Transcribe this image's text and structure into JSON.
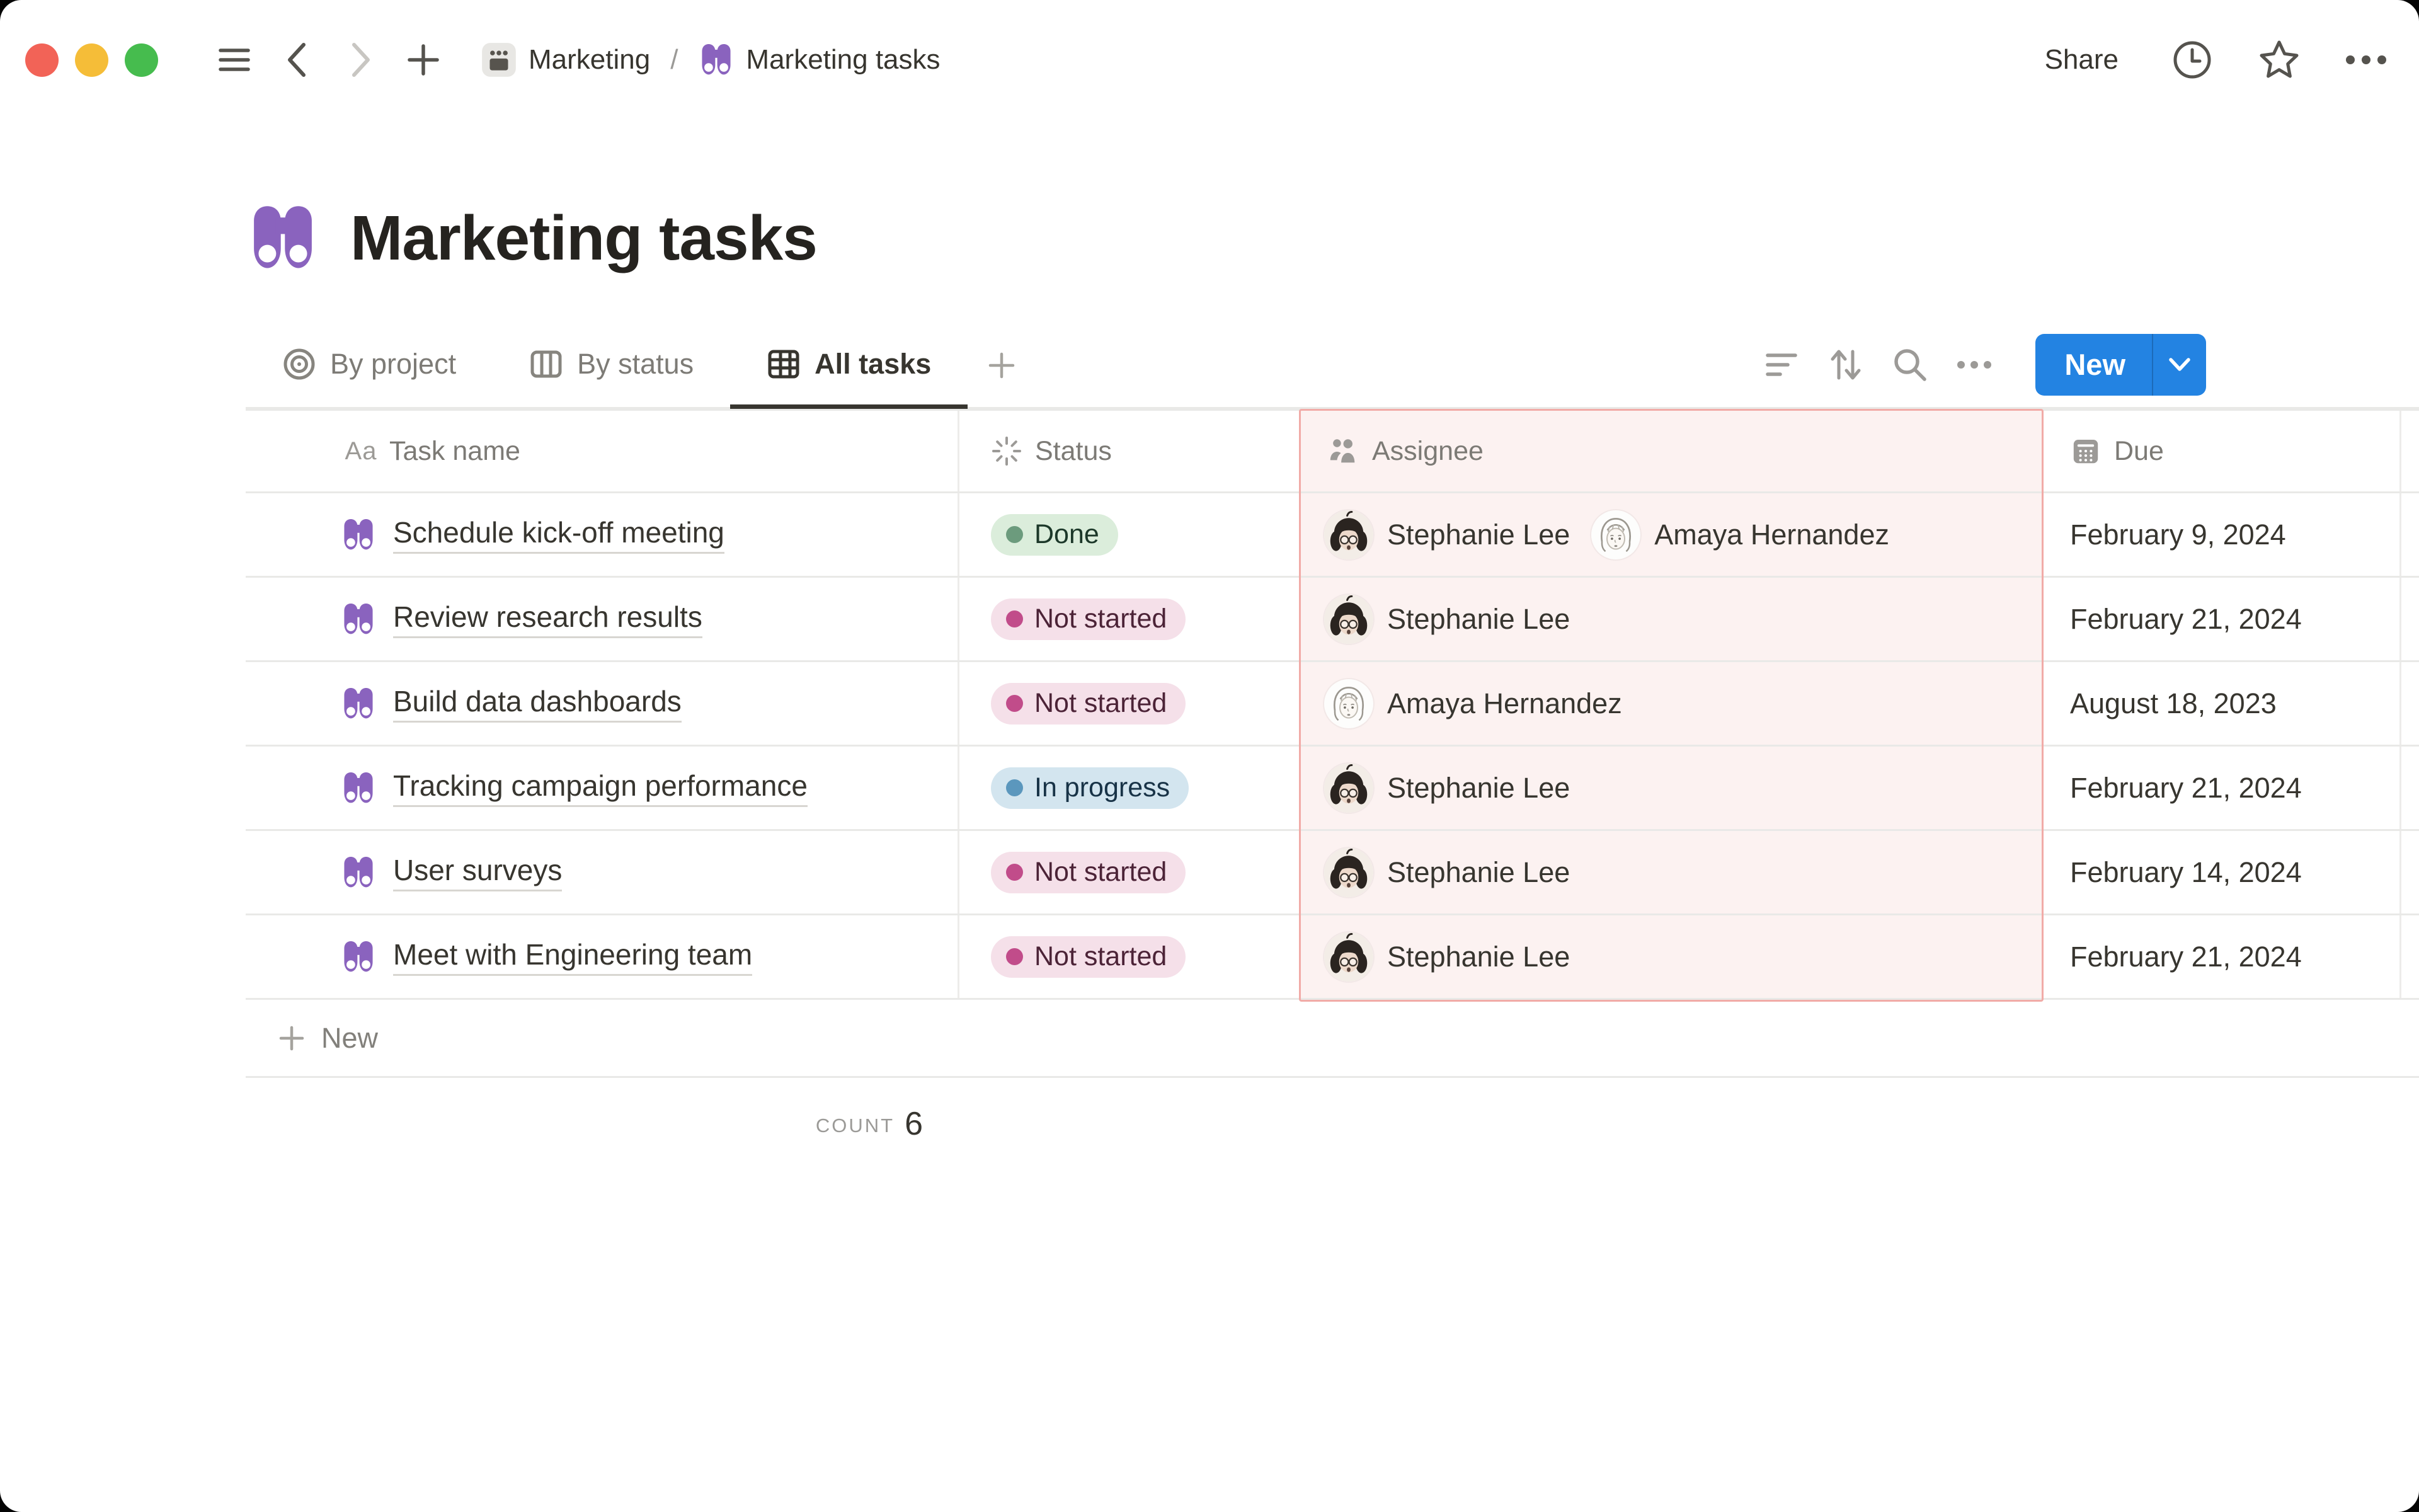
{
  "topbar": {
    "breadcrumb": {
      "root": "Marketing",
      "separator": "/",
      "current": "Marketing tasks"
    },
    "share_label": "Share"
  },
  "page": {
    "icon": "binoculars",
    "title": "Marketing tasks"
  },
  "views": {
    "tabs": [
      {
        "label": "By project",
        "icon": "target-icon",
        "active": false
      },
      {
        "label": "By status",
        "icon": "board-icon",
        "active": false
      },
      {
        "label": "All tasks",
        "icon": "table-icon",
        "active": true
      }
    ],
    "new_button": {
      "label": "New"
    }
  },
  "table": {
    "columns": [
      {
        "label": "Task name",
        "icon_text": "Aa"
      },
      {
        "label": "Status",
        "icon": "status-burst-icon"
      },
      {
        "label": "Assignee",
        "icon": "people-icon",
        "highlighted": true
      },
      {
        "label": "Due",
        "icon": "calendar-icon"
      }
    ],
    "rows": [
      {
        "task": "Schedule kick-off meeting",
        "status": {
          "label": "Done",
          "color": "green"
        },
        "assignees": [
          {
            "name": "Stephanie Lee",
            "avatar": "dark-haired-woman"
          },
          {
            "name": "Amaya Hernandez",
            "avatar": "sketch-woman"
          }
        ],
        "due": "February 9, 2024"
      },
      {
        "task": "Review research results",
        "status": {
          "label": "Not started",
          "color": "pink"
        },
        "assignees": [
          {
            "name": "Stephanie Lee",
            "avatar": "dark-haired-woman"
          }
        ],
        "due": "February 21, 2024"
      },
      {
        "task": "Build data dashboards",
        "status": {
          "label": "Not started",
          "color": "pink"
        },
        "assignees": [
          {
            "name": "Amaya Hernandez",
            "avatar": "sketch-woman"
          }
        ],
        "due": "August 18, 2023"
      },
      {
        "task": "Tracking campaign performance",
        "status": {
          "label": "In progress",
          "color": "blue"
        },
        "assignees": [
          {
            "name": "Stephanie Lee",
            "avatar": "dark-haired-woman"
          }
        ],
        "due": "February 21, 2024"
      },
      {
        "task": "User surveys",
        "status": {
          "label": "Not started",
          "color": "pink"
        },
        "assignees": [
          {
            "name": "Stephanie Lee",
            "avatar": "dark-haired-woman"
          }
        ],
        "due": "February 14, 2024"
      },
      {
        "task": "Meet with Engineering team",
        "status": {
          "label": "Not started",
          "color": "pink"
        },
        "assignees": [
          {
            "name": "Stephanie Lee",
            "avatar": "dark-haired-woman"
          }
        ],
        "due": "February 21, 2024"
      }
    ],
    "new_row_label": "New",
    "footer": {
      "count_label": "count",
      "count_value": "6"
    }
  },
  "colors": {
    "accent_blue": "#2383E2",
    "icon_purple": "#8A63BE",
    "highlight_column_bg": "#FCF2F1",
    "highlight_column_border": "#F1ABA7",
    "status_done_bg": "#DBEDDB",
    "status_done_dot": "#6C9B7D",
    "status_not_started_bg": "#F5E0E9",
    "status_not_started_dot": "#C14C8A",
    "status_in_progress_bg": "#D3E5EF",
    "status_in_progress_dot": "#5B97BD",
    "traffic_red": "#F26357",
    "traffic_yellow": "#F5BD38",
    "traffic_green": "#46BC4E"
  }
}
